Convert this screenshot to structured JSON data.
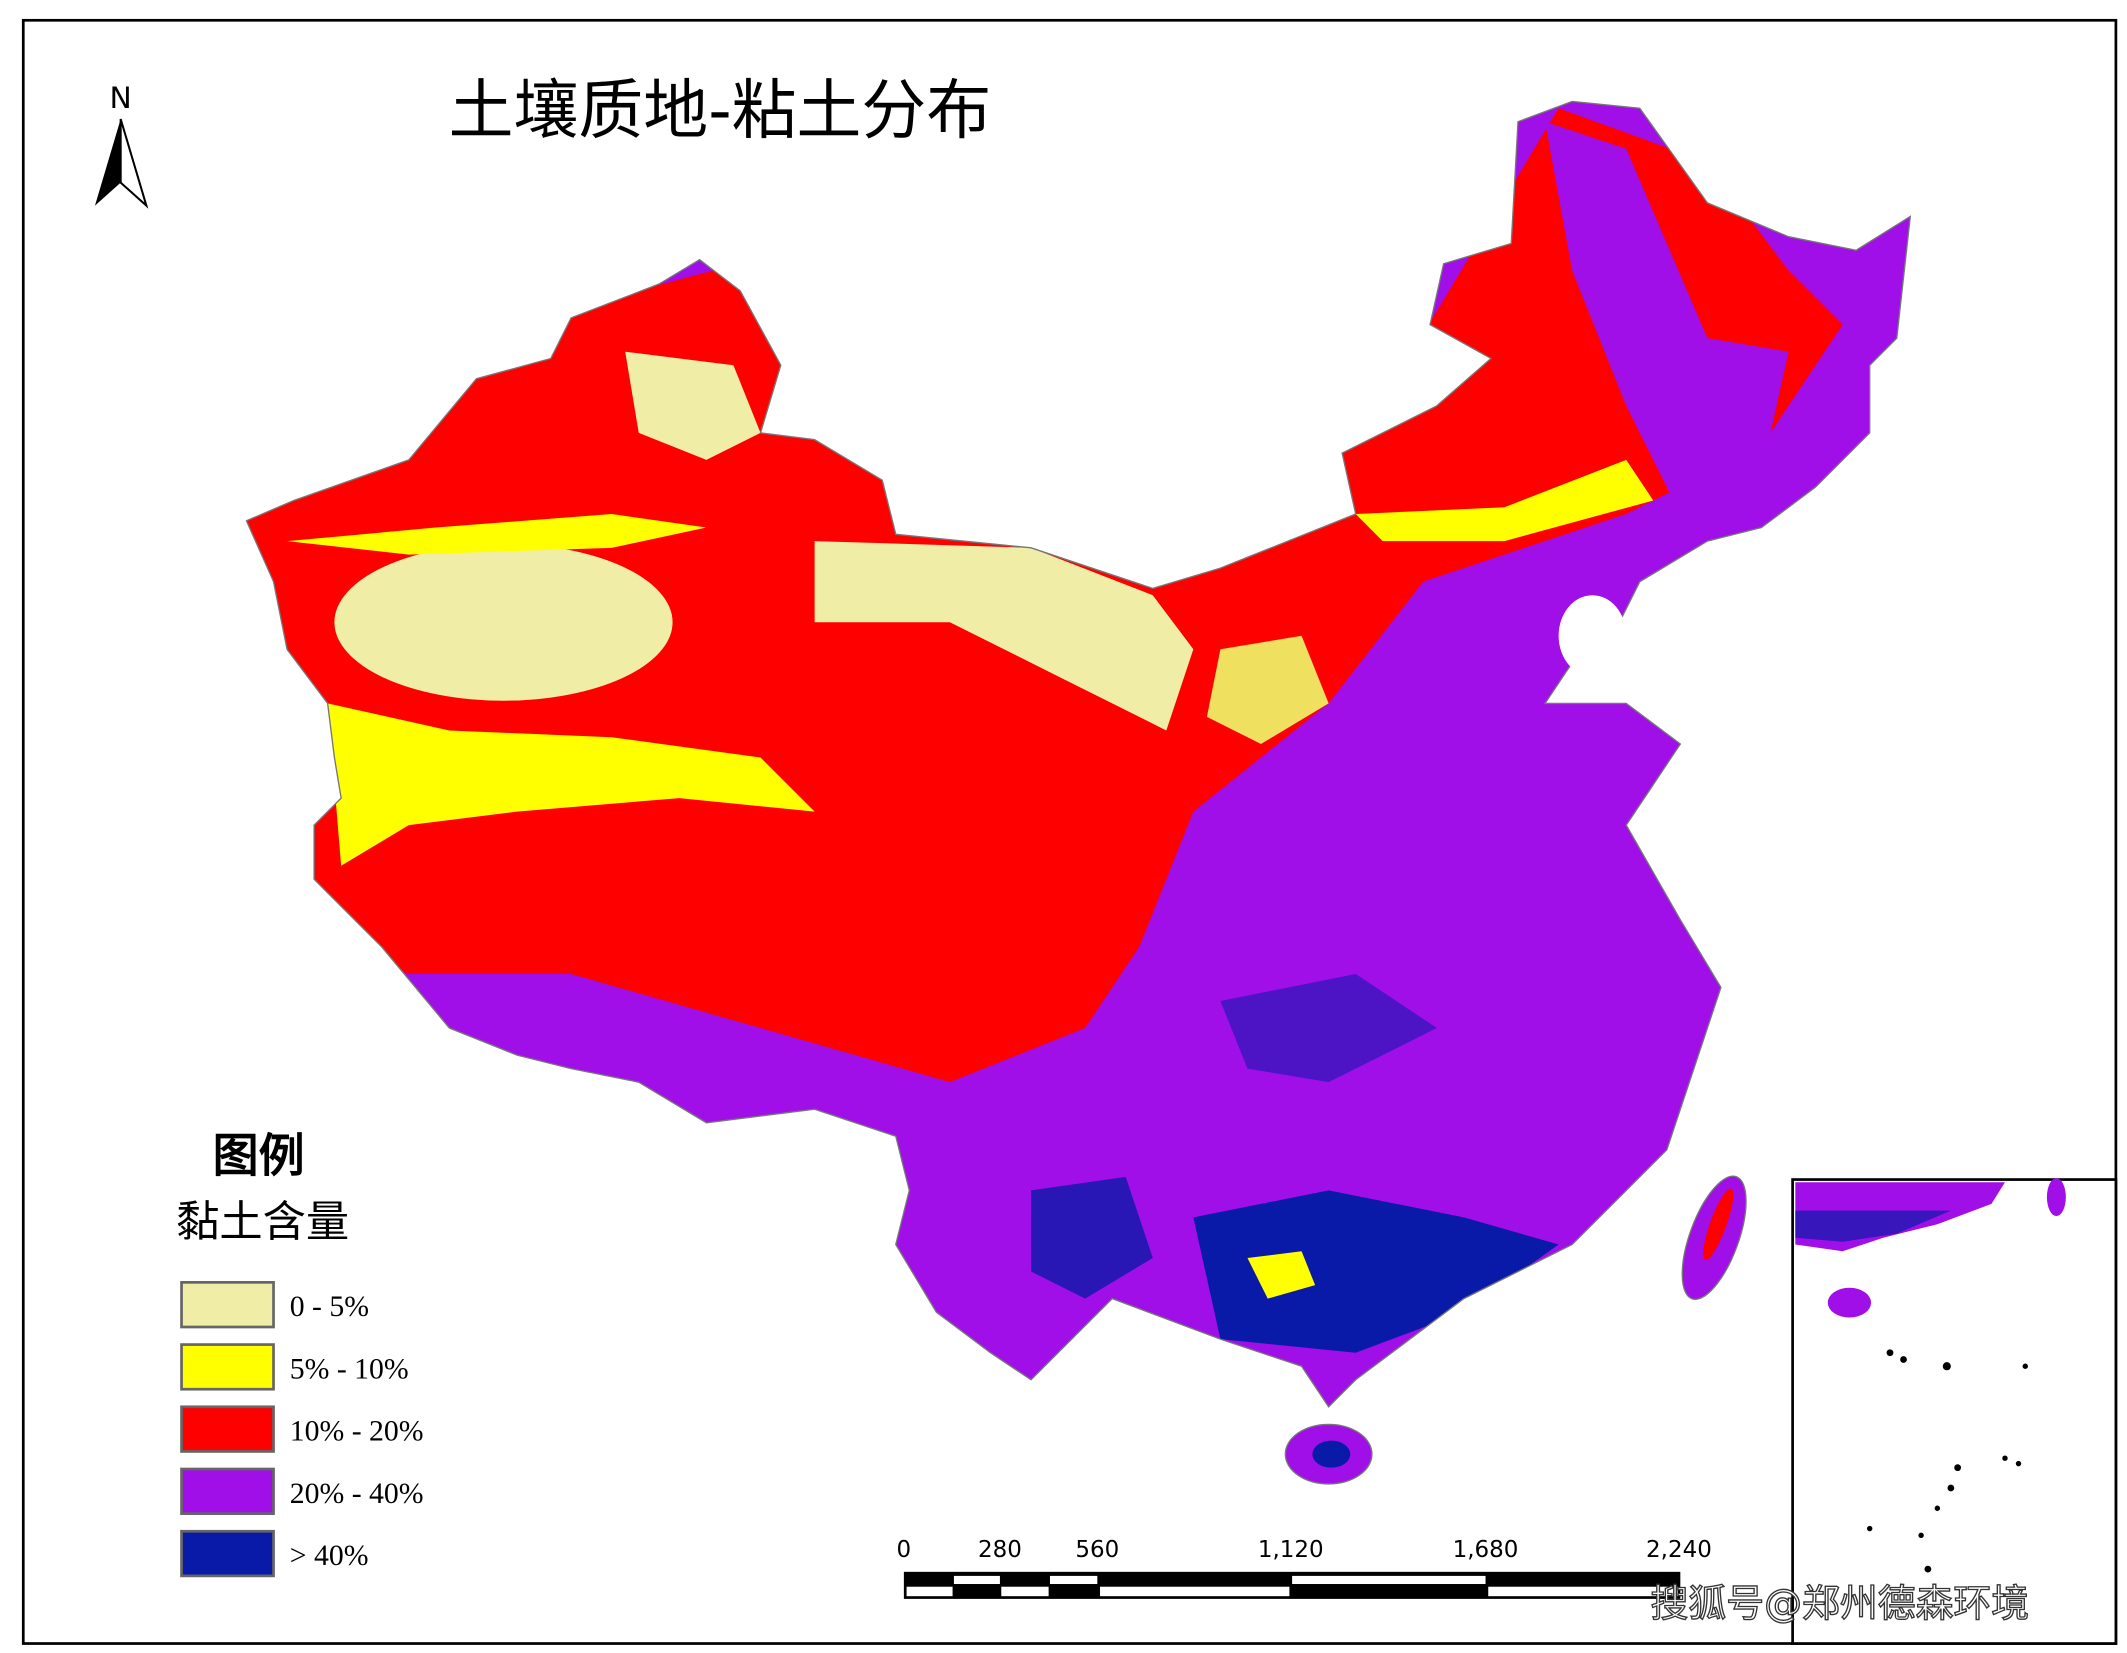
{
  "title": "土壤质地-粘土分布",
  "north_arrow": {
    "label": "N"
  },
  "legend": {
    "heading": "图例",
    "subtitle": "黏土含量",
    "items": [
      {
        "label": "0 - 5%",
        "color": "#f0eea6"
      },
      {
        "label": "5% - 10%",
        "color": "#ffff00"
      },
      {
        "label": "10% - 20%",
        "color": "#ff0000"
      },
      {
        "label": "20% - 40%",
        "color": "#a00ee8"
      },
      {
        "label": "> 40%",
        "color": "#0a1aa8"
      }
    ]
  },
  "scale_bar": {
    "ticks": [
      "0",
      "280",
      "560",
      "1,120",
      "1,680",
      "2,240"
    ]
  },
  "watermark": "搜狐号@郑州德森环境"
}
